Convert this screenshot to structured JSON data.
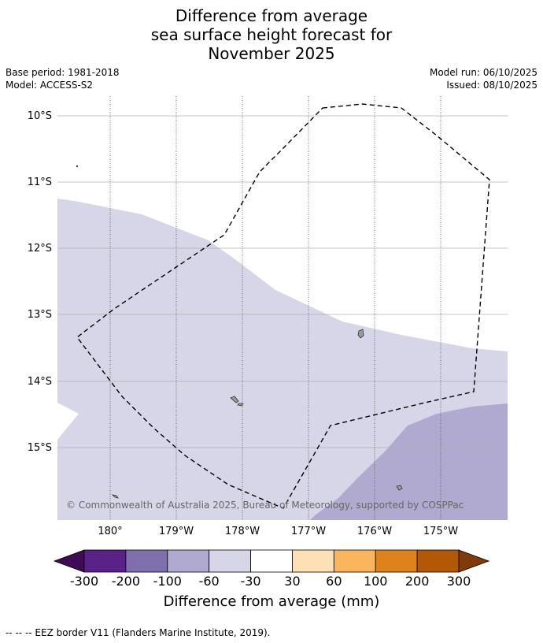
{
  "title_lines": [
    "Difference from average",
    "sea surface height forecast for",
    "November 2025"
  ],
  "meta": {
    "base_period": "Base period: 1981-2018",
    "model": "Model: ACCESS-S2",
    "model_run": "Model run: 06/10/2025",
    "issued": "Issued: 08/10/2025"
  },
  "map": {
    "lat_labels": [
      "10°S",
      "11°S",
      "12°S",
      "13°S",
      "14°S",
      "15°S"
    ],
    "lon_labels": [
      "180°",
      "179°W",
      "178°W",
      "177°W",
      "176°W",
      "175°W"
    ],
    "copyright": "© Commonwealth of Australia 2025, Bureau of Meteorology, supported by COSPPac"
  },
  "colorbar": {
    "colors": [
      "#3f0a57",
      "#5a2288",
      "#7f6fad",
      "#b0a9d0",
      "#d6d6e8",
      "#ffffff",
      "#fee0b6",
      "#fbb65d",
      "#e0821a",
      "#b35806",
      "#7f3b08"
    ],
    "ticks": [
      "-300",
      "-200",
      "-100",
      "-60",
      "-30",
      "30",
      "60",
      "100",
      "200",
      "300"
    ],
    "title": "Difference from average (mm)"
  },
  "footer": "--  --  -- EEZ border V11 (Flanders Marine Institute, 2019)."
}
